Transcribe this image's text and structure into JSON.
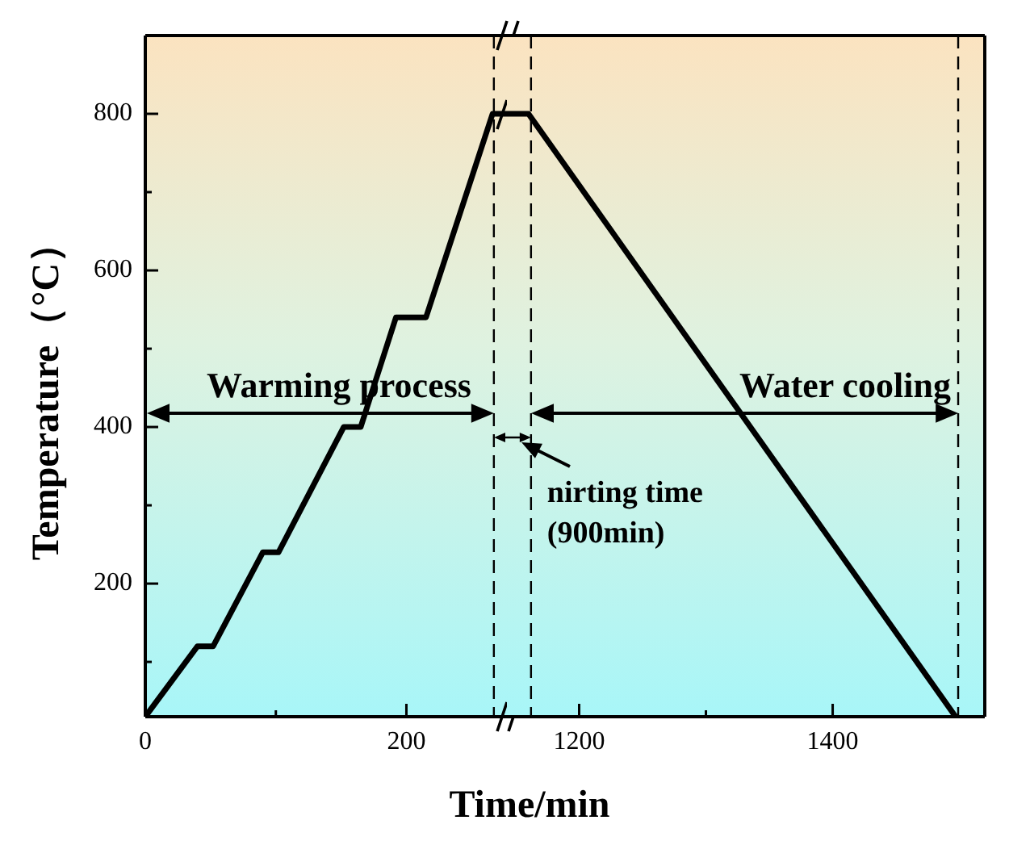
{
  "chart_data": [
    {
      "type": "line",
      "ylabel": "Temperature（°C）",
      "xlabel": "Time/min",
      "x": [
        0,
        40,
        52,
        90,
        102,
        152,
        165,
        192,
        215,
        266,
        277
      ],
      "series": [
        {
          "color": "#000000",
          "values": [
            30,
            120,
            120,
            240,
            240,
            400,
            400,
            540,
            540,
            800,
            800
          ]
        }
      ],
      "xlim": [
        0,
        277
      ],
      "xticks": [
        0,
        {
          "value": 100,
          "label": null
        },
        200
      ],
      "ylim": [
        30,
        900
      ],
      "yticks": [
        {
          "value": 100,
          "label": null
        },
        200,
        {
          "value": 300,
          "label": null
        },
        400,
        {
          "value": 500,
          "label": null
        },
        600,
        {
          "value": 700,
          "label": null
        },
        800
      ],
      "ref_lines": [
        {
          "axis": "x",
          "value": 267,
          "line_style": "dashed"
        }
      ],
      "annotations": [
        "Warming process"
      ],
      "marker": "none",
      "line_style": "solid",
      "legend": false
    },
    {
      "type": "line",
      "x": [
        1143,
        1160,
        1497
      ],
      "series": [
        {
          "color": "#000000",
          "values": [
            800,
            800,
            30
          ]
        }
      ],
      "xlim": [
        1143,
        1520
      ],
      "xticks": [
        1200,
        {
          "value": 1300,
          "label": null
        },
        1400
      ],
      "ylim": [
        30,
        900
      ],
      "tick_labels": "x",
      "ref_lines": [
        {
          "axis": "x",
          "value": 1162,
          "line_style": "dashed"
        },
        {
          "axis": "x",
          "value": 1499,
          "line_style": "dashed"
        }
      ],
      "annotations": [
        "Water cooling",
        "nirting time (900min)"
      ],
      "marker": "none",
      "line_style": "solid",
      "legend": false
    }
  ]
}
